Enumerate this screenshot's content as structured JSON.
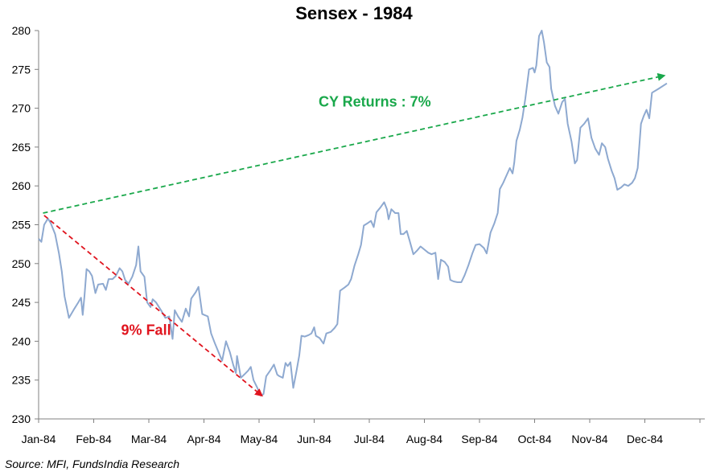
{
  "chart_data": {
    "type": "line",
    "title": "Sensex - 1984",
    "xlabel": "",
    "ylabel": "",
    "ylim": [
      230,
      280
    ],
    "yticks": [
      230,
      235,
      240,
      245,
      250,
      255,
      260,
      265,
      270,
      275,
      280
    ],
    "xlim": [
      0,
      12
    ],
    "xticks": [
      {
        "x": 0,
        "label": "Jan-84"
      },
      {
        "x": 1,
        "label": "Feb-84"
      },
      {
        "x": 2,
        "label": "Mar-84"
      },
      {
        "x": 3,
        "label": "Apr-84"
      },
      {
        "x": 4,
        "label": "May-84"
      },
      {
        "x": 5,
        "label": "Jun-84"
      },
      {
        "x": 6,
        "label": "Jul-84"
      },
      {
        "x": 7,
        "label": "Aug-84"
      },
      {
        "x": 8,
        "label": "Sep-84"
      },
      {
        "x": 9,
        "label": "Oct-84"
      },
      {
        "x": 10,
        "label": "Nov-84"
      },
      {
        "x": 11,
        "label": "Dec-84"
      }
    ],
    "grid": false,
    "legend": "none",
    "series": [
      {
        "color": "#8EA9D0",
        "points": [
          [
            0.0,
            253.2
          ],
          [
            0.05,
            252.8
          ],
          [
            0.1,
            255.0
          ],
          [
            0.17,
            255.8
          ],
          [
            0.22,
            255.2
          ],
          [
            0.3,
            253.8
          ],
          [
            0.37,
            251.3
          ],
          [
            0.42,
            249.0
          ],
          [
            0.47,
            245.8
          ],
          [
            0.55,
            243.0
          ],
          [
            0.65,
            244.2
          ],
          [
            0.72,
            245.0
          ],
          [
            0.77,
            245.6
          ],
          [
            0.8,
            243.4
          ],
          [
            0.83,
            245.7
          ],
          [
            0.87,
            249.3
          ],
          [
            0.92,
            249.0
          ],
          [
            0.97,
            248.4
          ],
          [
            1.03,
            246.2
          ],
          [
            1.08,
            247.3
          ],
          [
            1.17,
            247.4
          ],
          [
            1.22,
            246.6
          ],
          [
            1.27,
            248.0
          ],
          [
            1.34,
            248.0
          ],
          [
            1.4,
            248.4
          ],
          [
            1.47,
            249.4
          ],
          [
            1.52,
            249.0
          ],
          [
            1.57,
            247.9
          ],
          [
            1.63,
            247.4
          ],
          [
            1.7,
            248.3
          ],
          [
            1.77,
            249.8
          ],
          [
            1.81,
            252.2
          ],
          [
            1.85,
            249.0
          ],
          [
            1.92,
            248.3
          ],
          [
            1.97,
            245.0
          ],
          [
            2.03,
            244.4
          ],
          [
            2.07,
            245.4
          ],
          [
            2.13,
            245.0
          ],
          [
            2.22,
            244.0
          ],
          [
            2.3,
            243.0
          ],
          [
            2.37,
            243.2
          ],
          [
            2.43,
            240.3
          ],
          [
            2.47,
            244.0
          ],
          [
            2.53,
            243.2
          ],
          [
            2.6,
            242.5
          ],
          [
            2.67,
            244.2
          ],
          [
            2.73,
            243.2
          ],
          [
            2.77,
            245.5
          ],
          [
            2.85,
            246.3
          ],
          [
            2.9,
            247.0
          ],
          [
            2.97,
            243.5
          ],
          [
            3.07,
            243.2
          ],
          [
            3.13,
            241.0
          ],
          [
            3.2,
            239.7
          ],
          [
            3.27,
            238.5
          ],
          [
            3.33,
            237.5
          ],
          [
            3.4,
            240.0
          ],
          [
            3.47,
            238.6
          ],
          [
            3.53,
            237.0
          ],
          [
            3.58,
            235.9
          ],
          [
            3.6,
            238.1
          ],
          [
            3.67,
            235.3
          ],
          [
            3.73,
            235.7
          ],
          [
            3.8,
            236.2
          ],
          [
            3.85,
            236.7
          ],
          [
            3.9,
            235.0
          ],
          [
            3.97,
            234.0
          ],
          [
            4.03,
            233.0
          ],
          [
            4.08,
            233.2
          ],
          [
            4.13,
            235.5
          ],
          [
            4.2,
            236.2
          ],
          [
            4.27,
            237.0
          ],
          [
            4.33,
            235.7
          ],
          [
            4.37,
            235.5
          ],
          [
            4.43,
            235.3
          ],
          [
            4.48,
            237.2
          ],
          [
            4.52,
            236.8
          ],
          [
            4.57,
            237.3
          ],
          [
            4.62,
            234.0
          ],
          [
            4.68,
            236.2
          ],
          [
            4.73,
            238.2
          ],
          [
            4.77,
            240.7
          ],
          [
            4.83,
            240.6
          ],
          [
            4.9,
            240.8
          ],
          [
            4.95,
            241.0
          ],
          [
            5.0,
            241.8
          ],
          [
            5.03,
            240.7
          ],
          [
            5.1,
            240.4
          ],
          [
            5.17,
            239.7
          ],
          [
            5.22,
            241.0
          ],
          [
            5.3,
            241.2
          ],
          [
            5.37,
            241.7
          ],
          [
            5.42,
            242.2
          ],
          [
            5.47,
            246.5
          ],
          [
            5.55,
            246.9
          ],
          [
            5.62,
            247.3
          ],
          [
            5.67,
            248.0
          ],
          [
            5.73,
            249.7
          ],
          [
            5.8,
            251.2
          ],
          [
            5.85,
            252.4
          ],
          [
            5.9,
            254.9
          ],
          [
            5.97,
            255.2
          ],
          [
            6.03,
            255.5
          ],
          [
            6.08,
            254.7
          ],
          [
            6.13,
            256.6
          ],
          [
            6.2,
            257.2
          ],
          [
            6.27,
            257.9
          ],
          [
            6.32,
            257.0
          ],
          [
            6.35,
            255.7
          ],
          [
            6.4,
            257.0
          ],
          [
            6.47,
            256.5
          ],
          [
            6.53,
            256.5
          ],
          [
            6.57,
            253.8
          ],
          [
            6.62,
            253.8
          ],
          [
            6.68,
            254.2
          ],
          [
            6.73,
            253.0
          ],
          [
            6.8,
            251.2
          ],
          [
            6.87,
            251.7
          ],
          [
            6.93,
            252.2
          ],
          [
            7.0,
            251.8
          ],
          [
            7.07,
            251.4
          ],
          [
            7.13,
            251.2
          ],
          [
            7.2,
            251.4
          ],
          [
            7.25,
            248.0
          ],
          [
            7.3,
            250.5
          ],
          [
            7.37,
            250.2
          ],
          [
            7.43,
            249.6
          ],
          [
            7.47,
            247.9
          ],
          [
            7.53,
            247.7
          ],
          [
            7.6,
            247.6
          ],
          [
            7.67,
            247.6
          ],
          [
            7.73,
            248.5
          ],
          [
            7.8,
            249.8
          ],
          [
            7.87,
            251.3
          ],
          [
            7.93,
            252.4
          ],
          [
            8.0,
            252.5
          ],
          [
            8.08,
            252.0
          ],
          [
            8.13,
            251.3
          ],
          [
            8.2,
            254.0
          ],
          [
            8.27,
            255.2
          ],
          [
            8.33,
            256.5
          ],
          [
            8.37,
            259.6
          ],
          [
            8.43,
            260.4
          ],
          [
            8.48,
            261.2
          ],
          [
            8.55,
            262.3
          ],
          [
            8.6,
            261.6
          ],
          [
            8.63,
            263.0
          ],
          [
            8.67,
            265.8
          ],
          [
            8.73,
            267.2
          ],
          [
            8.78,
            268.8
          ],
          [
            8.83,
            271.2
          ],
          [
            8.9,
            275.0
          ],
          [
            8.97,
            275.2
          ],
          [
            9.0,
            274.6
          ],
          [
            9.03,
            275.5
          ],
          [
            9.08,
            279.3
          ],
          [
            9.13,
            280.0
          ],
          [
            9.17,
            278.5
          ],
          [
            9.22,
            275.9
          ],
          [
            9.27,
            275.3
          ],
          [
            9.3,
            272.5
          ],
          [
            9.37,
            270.3
          ],
          [
            9.43,
            269.3
          ],
          [
            9.5,
            270.8
          ],
          [
            9.55,
            271.2
          ],
          [
            9.6,
            268.0
          ],
          [
            9.67,
            265.7
          ],
          [
            9.73,
            262.9
          ],
          [
            9.77,
            263.3
          ],
          [
            9.83,
            267.5
          ],
          [
            9.9,
            268.0
          ],
          [
            9.97,
            268.7
          ],
          [
            10.03,
            266.2
          ],
          [
            10.1,
            264.8
          ],
          [
            10.17,
            264.0
          ],
          [
            10.22,
            265.5
          ],
          [
            10.28,
            265.0
          ],
          [
            10.33,
            263.5
          ],
          [
            10.4,
            261.9
          ],
          [
            10.45,
            261.0
          ],
          [
            10.5,
            259.5
          ],
          [
            10.57,
            259.8
          ],
          [
            10.63,
            260.2
          ],
          [
            10.7,
            260.0
          ],
          [
            10.77,
            260.4
          ],
          [
            10.82,
            261.0
          ],
          [
            10.87,
            262.3
          ],
          [
            10.93,
            268.0
          ],
          [
            10.98,
            269.0
          ],
          [
            11.03,
            269.8
          ],
          [
            11.08,
            268.7
          ],
          [
            11.13,
            272.0
          ],
          [
            11.25,
            272.5
          ],
          [
            11.4,
            273.2
          ]
        ]
      }
    ],
    "annotations": [
      {
        "label": "CY Returns : 7%",
        "color": "#1AA84B",
        "arrow_from": [
          0.08,
          256.5
        ],
        "arrow_to": [
          11.35,
          274.2
        ],
        "label_at": [
          6.1,
          270.2
        ]
      },
      {
        "label": "9% Fall",
        "color": "#E0141E",
        "arrow_from": [
          0.1,
          256.2
        ],
        "arrow_to": [
          4.05,
          233.0
        ],
        "label_at": [
          1.95,
          240.8
        ]
      }
    ],
    "source": "Source: MFI, FundsIndia Research"
  }
}
